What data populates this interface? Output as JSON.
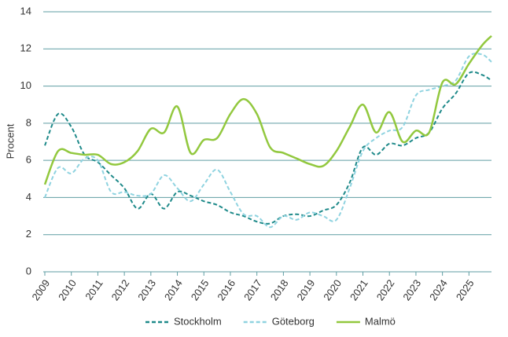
{
  "chart_data": {
    "type": "line",
    "y_label": "Procent",
    "x": [
      2009,
      2009.5,
      2010,
      2010.5,
      2011,
      2011.5,
      2012,
      2012.5,
      2013,
      2013.5,
      2014,
      2014.5,
      2015,
      2015.5,
      2016,
      2016.5,
      2017,
      2017.5,
      2018,
      2018.5,
      2019,
      2019.5,
      2020,
      2020.5,
      2021,
      2021.5,
      2022,
      2022.5,
      2023,
      2023.5,
      2024,
      2024.5,
      2025,
      2025.5,
      2025.85
    ],
    "series": [
      {
        "name": "Stockholm",
        "color": "#1f8a8a",
        "dashed": true,
        "values": [
          6.8,
          8.5,
          7.8,
          6.3,
          5.9,
          5.2,
          4.5,
          3.4,
          4.2,
          3.4,
          4.3,
          4.1,
          3.8,
          3.6,
          3.2,
          3.0,
          2.7,
          2.6,
          3.0,
          3.1,
          3.0,
          3.3,
          3.6,
          4.8,
          6.7,
          6.3,
          6.9,
          6.8,
          7.2,
          7.5,
          8.8,
          9.6,
          10.7,
          10.6,
          10.3
        ]
      },
      {
        "name": "Göteborg",
        "color": "#8fd3e0",
        "dashed": true,
        "values": [
          4.0,
          5.6,
          5.3,
          6.1,
          6.0,
          4.3,
          4.3,
          4.1,
          4.2,
          5.2,
          4.5,
          3.8,
          4.7,
          5.5,
          4.3,
          3.1,
          3.0,
          2.4,
          3.0,
          2.8,
          3.2,
          3.0,
          2.8,
          4.5,
          6.5,
          7.2,
          7.6,
          7.8,
          9.5,
          9.8,
          10.0,
          10.3,
          11.6,
          11.7,
          11.3
        ]
      },
      {
        "name": "Malmö",
        "color": "#92c83e",
        "dashed": false,
        "values": [
          4.7,
          6.5,
          6.4,
          6.3,
          6.3,
          5.8,
          5.9,
          6.5,
          7.7,
          7.5,
          8.9,
          6.4,
          7.1,
          7.2,
          8.5,
          9.3,
          8.5,
          6.7,
          6.4,
          6.1,
          5.8,
          5.7,
          6.5,
          7.8,
          9.0,
          7.5,
          8.6,
          7.0,
          7.6,
          7.5,
          10.2,
          10.1,
          11.2,
          12.2,
          12.7
        ]
      }
    ],
    "xlim": [
      2009,
      2025.85
    ],
    "xticks": [
      2009,
      2010,
      2011,
      2012,
      2013,
      2014,
      2015,
      2016,
      2017,
      2018,
      2019,
      2020,
      2021,
      2022,
      2023,
      2024,
      2025
    ],
    "ylim": [
      0,
      14
    ],
    "yticks": [
      0,
      2,
      4,
      6,
      8,
      10,
      12,
      14
    ],
    "grid": true,
    "legend": "bottom"
  }
}
